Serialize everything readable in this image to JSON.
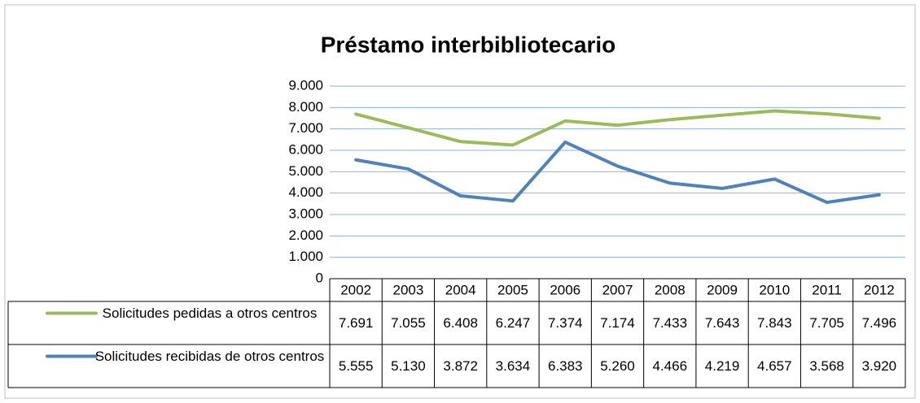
{
  "chart_data": {
    "type": "line",
    "title": "Préstamo interbibliotecario",
    "categories": [
      "2002",
      "2003",
      "2004",
      "2005",
      "2006",
      "2007",
      "2008",
      "2009",
      "2010",
      "2011",
      "2012"
    ],
    "series": [
      {
        "name": "Solicitudes pedidas a otros centros",
        "color": "#9bbb59",
        "values": [
          7691,
          7055,
          6408,
          6247,
          7374,
          7174,
          7433,
          7643,
          7843,
          7705,
          7496
        ],
        "value_labels": [
          "7.691",
          "7.055",
          "6.408",
          "6.247",
          "7.374",
          "7.174",
          "7.433",
          "7.643",
          "7.843",
          "7.705",
          "7.496"
        ]
      },
      {
        "name": "Solicitudes recibidas de otros centros",
        "color": "#4f81bd",
        "values": [
          5555,
          5130,
          3872,
          3634,
          6383,
          5260,
          4466,
          4219,
          4657,
          3568,
          3920
        ],
        "value_labels": [
          "5.555",
          "5.130",
          "3.872",
          "3.634",
          "6.383",
          "5.260",
          "4.466",
          "4.219",
          "4.657",
          "3.568",
          "3.920"
        ]
      }
    ],
    "ylim": [
      0,
      9000
    ],
    "yticks": [
      0,
      {
        "value": 1000,
        "label": "1.000"
      },
      {
        "value": 2000,
        "label": "2.000"
      },
      {
        "value": 3000,
        "label": "3.000"
      },
      {
        "value": 4000,
        "label": "4.000"
      },
      {
        "value": 5000,
        "label": "5.000"
      },
      {
        "value": 6000,
        "label": "6.000"
      },
      {
        "value": 7000,
        "label": "7.000"
      },
      {
        "value": 8000,
        "label": "8.000"
      },
      {
        "value": 9000,
        "label": "9.000"
      }
    ],
    "grid": true
  }
}
